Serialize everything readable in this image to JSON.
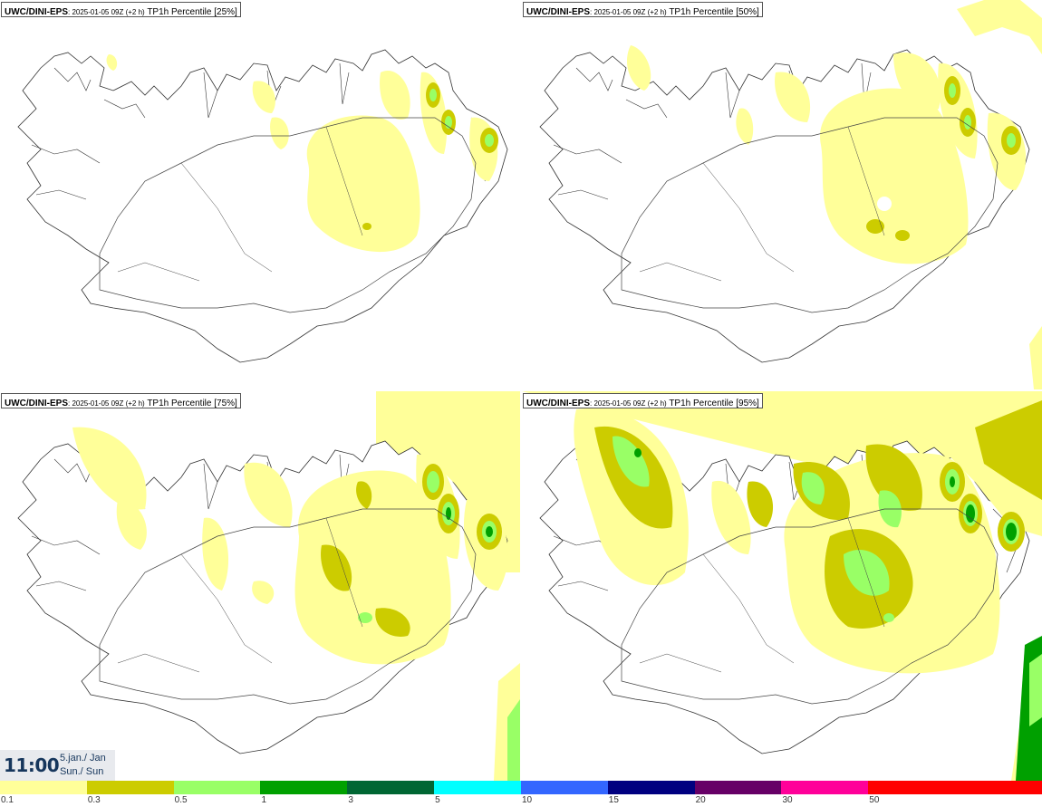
{
  "panels": [
    {
      "model": "UWC/DINI-EPS",
      "run": ": 2025-01-05 09Z (+2 h)",
      "param": " TP1h Percentile [25%]"
    },
    {
      "model": "UWC/DINI-EPS",
      "run": ": 2025-01-05 09Z (+2 h)",
      "param": " TP1h Percentile [50%]"
    },
    {
      "model": "UWC/DINI-EPS",
      "run": ": 2025-01-05 09Z (+2 h)",
      "param": " TP1h Percentile [75%]"
    },
    {
      "model": "UWC/DINI-EPS",
      "run": ": 2025-01-05 09Z (+2 h)",
      "param": " TP1h Percentile [95%]"
    }
  ],
  "time": {
    "clock": "11:00",
    "date": "5.jan./ Jan",
    "day": "Sun./ Sun"
  },
  "legend": {
    "labels": [
      "0.1",
      "0.3",
      "0.5",
      "1",
      "3",
      "5",
      "10",
      "15",
      "20",
      "30",
      "50",
      ""
    ],
    "colors": [
      "#ffff99",
      "#cccc00",
      "#99ff66",
      "#00a000",
      "#006633",
      "#00ffff",
      "#3366ff",
      "#000080",
      "#660066",
      "#ff0099",
      "#ff0000",
      "#ff0000"
    ]
  },
  "map_colors": {
    "land_outline": "#333333",
    "roads": "#444444",
    "precip_light": "#ffff99",
    "precip_moderate": "#cccc00",
    "precip_heavy": "#99ff66",
    "precip_intense": "#00a000",
    "precip_extreme": "#006633"
  }
}
